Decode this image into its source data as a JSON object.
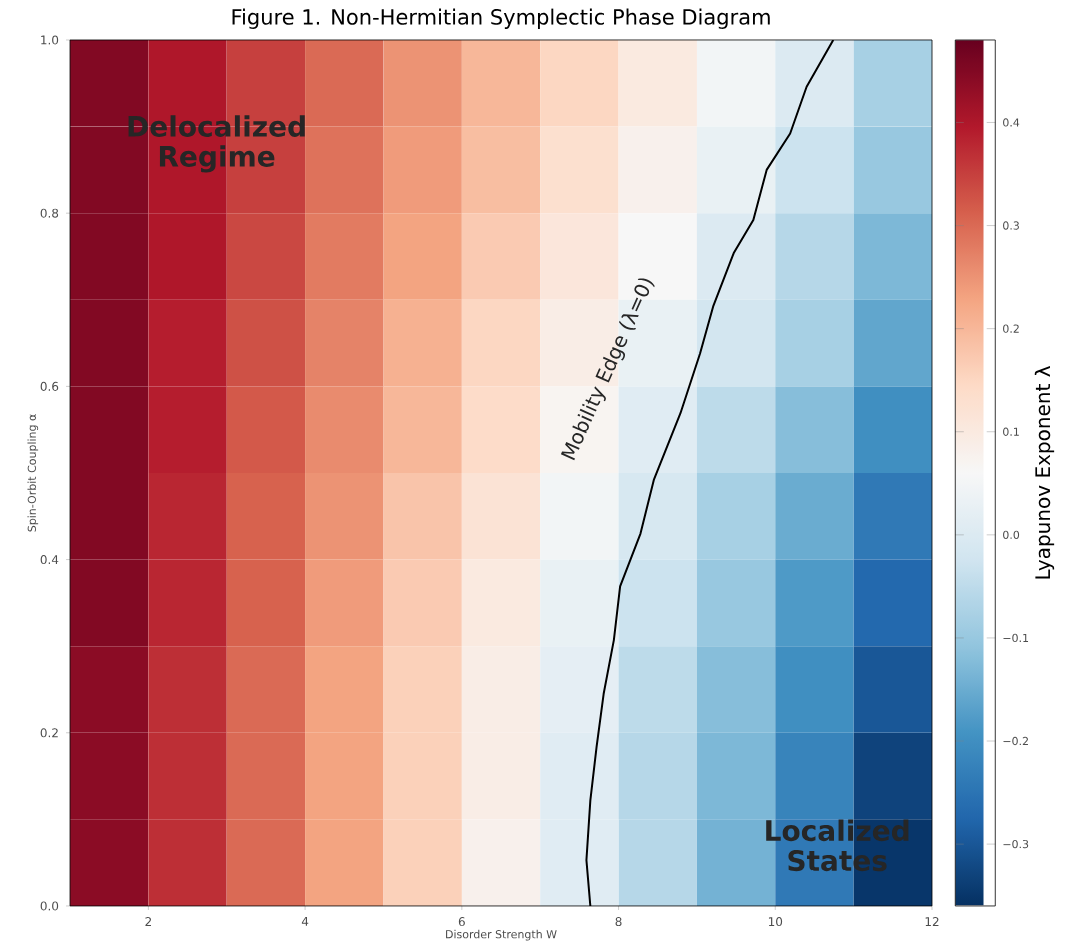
{
  "chart_data": {
    "type": "heatmap",
    "title": "Figure 1. Non-Hermitian Symplectic Phase Diagram",
    "xlabel": "Disorder Strength W",
    "ylabel": "Spin-Orbit Coupling α",
    "clabel": "Lyapunov Exponent λ",
    "xlim": [
      1,
      12
    ],
    "xticks": [
      2,
      4,
      6,
      8,
      10,
      12
    ],
    "ylim": [
      0,
      1
    ],
    "yticks": [
      {
        "value": 0,
        "label": "0.0"
      },
      {
        "value": 0.2,
        "label": "0.2"
      },
      {
        "value": 0.4,
        "label": "0.4"
      },
      {
        "value": 0.6,
        "label": "0.6"
      },
      {
        "value": 0.8,
        "label": "0.8"
      },
      {
        "value": 1,
        "label": "1.0"
      }
    ],
    "clim": [
      -0.36,
      0.48
    ],
    "cticks": [
      {
        "value": -0.3,
        "label": "−0.3"
      },
      {
        "value": -0.2,
        "label": "−0.2"
      },
      {
        "value": -0.1,
        "label": "−0.1"
      },
      {
        "value": 0,
        "label": "0.0"
      },
      {
        "value": 0.1,
        "label": "0.1"
      },
      {
        "value": 0.2,
        "label": "0.2"
      },
      {
        "value": 0.3,
        "label": "0.3"
      },
      {
        "value": 0.4,
        "label": "0.4"
      }
    ],
    "cells": [
      [
        0.45,
        0.4,
        0.35,
        0.3,
        0.25,
        0.2,
        0.15,
        0.1,
        0.05,
        0.0,
        -0.08
      ],
      [
        0.45,
        0.4,
        0.35,
        0.29,
        0.24,
        0.19,
        0.13,
        0.08,
        0.03,
        -0.03,
        -0.1
      ],
      [
        0.45,
        0.4,
        0.34,
        0.28,
        0.23,
        0.17,
        0.11,
        0.06,
        0.0,
        -0.06,
        -0.13
      ],
      [
        0.45,
        0.39,
        0.33,
        0.27,
        0.21,
        0.15,
        0.09,
        0.03,
        -0.02,
        -0.08,
        -0.16
      ],
      [
        0.45,
        0.39,
        0.32,
        0.26,
        0.2,
        0.14,
        0.07,
        0.01,
        -0.05,
        -0.12,
        -0.2
      ],
      [
        0.45,
        0.38,
        0.31,
        0.25,
        0.18,
        0.12,
        0.05,
        -0.01,
        -0.08,
        -0.15,
        -0.24
      ],
      [
        0.45,
        0.38,
        0.31,
        0.24,
        0.17,
        0.1,
        0.03,
        -0.03,
        -0.1,
        -0.18,
        -0.27
      ],
      [
        0.44,
        0.37,
        0.3,
        0.23,
        0.16,
        0.09,
        0.02,
        -0.05,
        -0.12,
        -0.2,
        -0.3
      ],
      [
        0.44,
        0.37,
        0.3,
        0.23,
        0.16,
        0.09,
        0.01,
        -0.06,
        -0.13,
        -0.22,
        -0.33
      ],
      [
        0.44,
        0.37,
        0.3,
        0.23,
        0.16,
        0.08,
        0.01,
        -0.06,
        -0.14,
        -0.24,
        -0.35
      ]
    ],
    "series": [
      {
        "type": "line",
        "color": "#000000",
        "x": [
          7.64,
          7.59,
          7.64,
          7.72,
          7.81,
          7.94,
          8.02,
          8.28,
          8.45,
          8.79,
          9.04,
          9.21,
          9.47,
          9.72,
          9.89,
          10.19,
          10.4,
          10.74
        ],
        "values": [
          0.0,
          0.053,
          0.122,
          0.184,
          0.245,
          0.307,
          0.369,
          0.43,
          0.492,
          0.569,
          0.638,
          0.693,
          0.754,
          0.792,
          0.85,
          0.892,
          0.946,
          1.0
        ]
      }
    ],
    "annotations": [
      "Delocalized Regime",
      "Mobility Edge (λ=0)",
      "Localized States"
    ]
  }
}
